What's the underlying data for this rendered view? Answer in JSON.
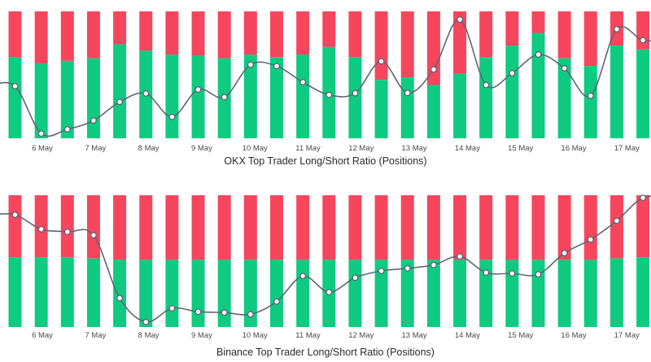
{
  "chart_data": [
    {
      "type": "bar",
      "title": "OKX Top Trader Long/Short Ratio (Positions)",
      "x_tick_labels": [
        "6 May",
        "7 May",
        "8 May",
        "9 May",
        "10 May",
        "11 May",
        "12 May",
        "13 May",
        "14 May",
        "15 May",
        "16 May",
        "17 May"
      ],
      "series": [
        {
          "values": [
            64,
            59,
            61,
            63,
            74,
            69,
            66,
            65,
            63,
            66,
            64,
            66,
            72,
            64,
            46,
            48,
            42,
            51,
            64,
            73,
            83,
            63,
            57,
            73,
            70
          ]
        },
        {
          "values": [
            36,
            41,
            39,
            37,
            26,
            31,
            34,
            35,
            37,
            34,
            36,
            34,
            28,
            36,
            54,
            52,
            58,
            49,
            36,
            27,
            17,
            37,
            43,
            27,
            30
          ]
        },
        {
          "values": [
            1.85,
            0.17,
            0.32,
            0.63,
            1.29,
            1.59,
            0.76,
            1.73,
            1.46,
            2.61,
            2.56,
            1.99,
            1.54,
            1.6,
            2.73,
            1.61,
            2.44,
            4.21,
            1.89,
            2.31,
            2.97,
            2.48,
            1.51,
            3.87,
            3.48
          ]
        }
      ],
      "colors": {
        "long": "#0ecb81",
        "short": "#f6465d",
        "ratio": "#5e6673"
      }
    },
    {
      "type": "bar",
      "title": "Binance Top Trader Long/Short Ratio (Positions)",
      "x_tick_labels": [
        "6 May",
        "7 May",
        "8 May",
        "9 May",
        "10 May",
        "11 May",
        "12 May",
        "13 May",
        "14 May",
        "15 May",
        "16 May",
        "17 May"
      ],
      "series": [
        {
          "values": [
            53,
            53,
            53,
            52,
            51,
            51,
            51,
            51,
            51,
            51,
            51,
            51,
            51,
            51,
            51,
            51,
            51,
            51,
            51,
            51,
            51,
            51,
            51,
            52,
            53
          ]
        },
        {
          "values": [
            47,
            47,
            47,
            48,
            49,
            49,
            49,
            49,
            49,
            49,
            49,
            49,
            49,
            49,
            49,
            49,
            49,
            49,
            49,
            49,
            49,
            49,
            49,
            48,
            47
          ]
        },
        {
          "values": [
            1.132,
            1.115,
            1.112,
            1.108,
            1.034,
            1.006,
            1.022,
            1.018,
            1.017,
            1.015,
            1.03,
            1.06,
            1.041,
            1.058,
            1.066,
            1.069,
            1.073,
            1.083,
            1.064,
            1.063,
            1.062,
            1.087,
            1.103,
            1.125,
            1.152
          ]
        }
      ],
      "colors": {
        "long": "#0ecb81",
        "short": "#f6465d",
        "ratio": "#5e6673"
      }
    }
  ]
}
